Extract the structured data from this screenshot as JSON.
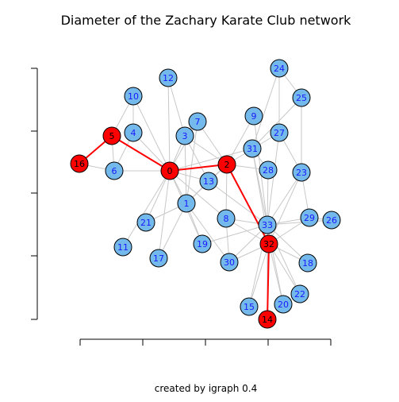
{
  "title": "Diameter of the Zachary Karate Club network",
  "caption": "created by igraph 0.4",
  "colors": {
    "node_default": "#74b9ec",
    "node_highlight": "#ff0000",
    "label_default": "#1a1aff",
    "label_highlight": "#000000",
    "edge_default": "#c8c8c8",
    "edge_highlight": "#ff0000"
  },
  "diagram": {
    "nodes": [
      {
        "id": "0",
        "highlight": true
      },
      {
        "id": "1"
      },
      {
        "id": "2",
        "highlight": true
      },
      {
        "id": "3"
      },
      {
        "id": "4"
      },
      {
        "id": "5",
        "highlight": true
      },
      {
        "id": "6"
      },
      {
        "id": "7"
      },
      {
        "id": "8"
      },
      {
        "id": "9"
      },
      {
        "id": "11"
      },
      {
        "id": "12"
      },
      {
        "id": "13"
      },
      {
        "id": "14",
        "highlight": true
      },
      {
        "id": "15"
      },
      {
        "id": "16",
        "highlight": true
      },
      {
        "id": "17"
      },
      {
        "id": "18"
      },
      {
        "id": "19"
      },
      {
        "id": "21"
      },
      {
        "id": "22"
      },
      {
        "id": "23"
      },
      {
        "id": "24"
      },
      {
        "id": "25"
      },
      {
        "id": "26"
      },
      {
        "id": "27"
      },
      {
        "id": "28"
      },
      {
        "id": "29"
      },
      {
        "id": "30"
      },
      {
        "id": "31"
      },
      {
        "id": "32",
        "highlight": true
      },
      {
        "id": "33"
      },
      {
        "id": "10"
      },
      {
        "id": "20"
      }
    ],
    "highlight_edges": [
      [
        "16",
        "5"
      ],
      [
        "5",
        "0"
      ],
      [
        "0",
        "2"
      ],
      [
        "2",
        "32"
      ],
      [
        "32",
        "14"
      ]
    ],
    "edges": [
      [
        "0",
        "1"
      ],
      [
        "0",
        "3"
      ],
      [
        "0",
        "4"
      ],
      [
        "0",
        "6"
      ],
      [
        "0",
        "7"
      ],
      [
        "0",
        "11"
      ],
      [
        "0",
        "12"
      ],
      [
        "0",
        "13"
      ],
      [
        "0",
        "17"
      ],
      [
        "0",
        "19"
      ],
      [
        "0",
        "21"
      ],
      [
        "0",
        "31"
      ],
      [
        "0",
        "10"
      ],
      [
        "0",
        "8"
      ],
      [
        "0",
        "5"
      ],
      [
        "0",
        "2"
      ],
      [
        "1",
        "2"
      ],
      [
        "1",
        "3"
      ],
      [
        "1",
        "7"
      ],
      [
        "1",
        "13"
      ],
      [
        "1",
        "17"
      ],
      [
        "1",
        "19"
      ],
      [
        "1",
        "21"
      ],
      [
        "1",
        "30"
      ],
      [
        "2",
        "3"
      ],
      [
        "2",
        "7"
      ],
      [
        "2",
        "8"
      ],
      [
        "2",
        "9"
      ],
      [
        "2",
        "13"
      ],
      [
        "2",
        "27"
      ],
      [
        "2",
        "28"
      ],
      [
        "2",
        "32"
      ],
      [
        "3",
        "7"
      ],
      [
        "3",
        "12"
      ],
      [
        "3",
        "13"
      ],
      [
        "4",
        "10"
      ],
      [
        "4",
        "6"
      ],
      [
        "5",
        "6"
      ],
      [
        "5",
        "10"
      ],
      [
        "5",
        "16"
      ],
      [
        "6",
        "16"
      ],
      [
        "8",
        "30"
      ],
      [
        "8",
        "32"
      ],
      [
        "8",
        "33"
      ],
      [
        "9",
        "33"
      ],
      [
        "13",
        "33"
      ],
      [
        "14",
        "32"
      ],
      [
        "14",
        "33"
      ],
      [
        "15",
        "32"
      ],
      [
        "15",
        "33"
      ],
      [
        "18",
        "32"
      ],
      [
        "18",
        "33"
      ],
      [
        "19",
        "33"
      ],
      [
        "20",
        "32"
      ],
      [
        "20",
        "33"
      ],
      [
        "22",
        "32"
      ],
      [
        "22",
        "33"
      ],
      [
        "23",
        "25"
      ],
      [
        "23",
        "27"
      ],
      [
        "23",
        "29"
      ],
      [
        "23",
        "32"
      ],
      [
        "23",
        "33"
      ],
      [
        "24",
        "25"
      ],
      [
        "24",
        "27"
      ],
      [
        "24",
        "31"
      ],
      [
        "25",
        "31"
      ],
      [
        "26",
        "29"
      ],
      [
        "26",
        "33"
      ],
      [
        "27",
        "33"
      ],
      [
        "28",
        "31"
      ],
      [
        "28",
        "33"
      ],
      [
        "29",
        "32"
      ],
      [
        "29",
        "33"
      ],
      [
        "30",
        "32"
      ],
      [
        "30",
        "33"
      ],
      [
        "31",
        "32"
      ],
      [
        "31",
        "33"
      ],
      [
        "32",
        "33"
      ]
    ]
  }
}
